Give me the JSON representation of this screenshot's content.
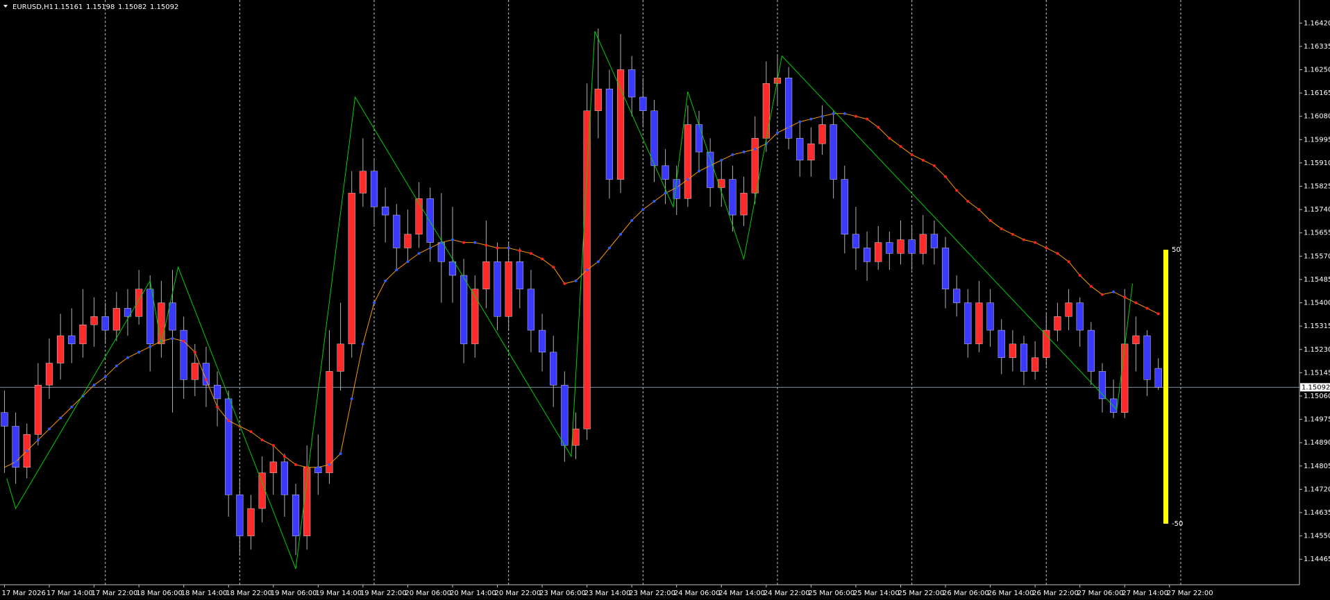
{
  "chart_data": {
    "type": "candlestick",
    "symbol": "EURUSD,H1",
    "quote": [
      1.15161,
      1.15198,
      1.15082,
      1.15092
    ],
    "last_price": 1.15092,
    "up_color": "#ff2a2a",
    "down_color": "#3a3aff",
    "wick_color": "#b0b0b0",
    "ma_color": "#ff9900",
    "ma_up_color": "#2a5cff",
    "ma_down_color": "#ff2020",
    "zigzag_color": "#00d000",
    "grid": true,
    "ylim": [
      1.14372,
      1.16494
    ],
    "xlim": [
      -0.4,
      115.6
    ],
    "yticks": [
      {
        "value": 1.1642,
        "label": "1.16420"
      },
      1.16335,
      {
        "value": 1.1625,
        "label": "1.16250"
      },
      1.16165,
      {
        "value": 1.1608,
        "label": "1.16080"
      },
      1.15995,
      {
        "value": 1.1591,
        "label": "1.15910"
      },
      1.15825,
      {
        "value": 1.1574,
        "label": "1.15740"
      },
      1.15655,
      {
        "value": 1.1557,
        "label": "1.15570"
      },
      1.15485,
      {
        "value": 1.154,
        "label": "1.15400"
      },
      1.15315,
      {
        "value": 1.1523,
        "label": "1.15230"
      },
      1.15145,
      {
        "value": 1.1506,
        "label": "1.15060"
      },
      1.14975,
      {
        "value": 1.1489,
        "label": "1.14890"
      },
      1.14805,
      {
        "value": 1.1472,
        "label": "1.14720"
      },
      1.14635,
      {
        "value": 1.1455,
        "label": "1.14550"
      },
      1.14465
    ],
    "xticks": [
      {
        "value": 0,
        "label": "17 Mar 2026"
      },
      {
        "value": 4,
        "label": "17 Mar 14:00"
      },
      {
        "value": 8,
        "label": "17 Mar 22:00"
      },
      {
        "value": 12,
        "label": "18 Mar 06:00"
      },
      {
        "value": 16,
        "label": "18 Mar 14:00"
      },
      {
        "value": 20,
        "label": "18 Mar 22:00"
      },
      {
        "value": 24,
        "label": "19 Mar 06:00"
      },
      {
        "value": 28,
        "label": "19 Mar 14:00"
      },
      {
        "value": 32,
        "label": "19 Mar 22:00"
      },
      {
        "value": 36,
        "label": "20 Mar 06:00"
      },
      {
        "value": 40,
        "label": "20 Mar 14:00"
      },
      {
        "value": 44,
        "label": "20 Mar 22:00"
      },
      {
        "value": 48,
        "label": "23 Mar 06:00"
      },
      {
        "value": 52,
        "label": "23 Mar 14:00"
      },
      {
        "value": 56,
        "label": "23 Mar 22:00"
      },
      {
        "value": 60,
        "label": "24 Mar 06:00"
      },
      {
        "value": 64,
        "label": "24 Mar 14:00"
      },
      {
        "value": 68,
        "label": "24 Mar 22:00"
      },
      {
        "value": 72,
        "label": "25 Mar 06:00"
      },
      {
        "value": 76,
        "label": "25 Mar 14:00"
      },
      {
        "value": 80,
        "label": "25 Mar 22:00"
      },
      {
        "value": 84,
        "label": "26 Mar 06:00"
      },
      {
        "value": 88,
        "label": "26 Mar 14:00"
      },
      {
        "value": 92,
        "label": "26 Mar 22:00"
      },
      {
        "value": 96,
        "label": "27 Mar 06:00"
      },
      {
        "value": 100,
        "label": "27 Mar 14:00"
      },
      {
        "value": 104,
        "label": "27 Mar 22:00"
      }
    ],
    "ohlc": [
      [
        1.15,
        1.1508,
        1.1478,
        1.1495
      ],
      [
        1.1495,
        1.15,
        1.1474,
        1.148
      ],
      [
        1.148,
        1.1496,
        1.1476,
        1.1492
      ],
      [
        1.1492,
        1.1518,
        1.1488,
        1.151
      ],
      [
        1.151,
        1.1527,
        1.1505,
        1.1518
      ],
      [
        1.1518,
        1.1536,
        1.1512,
        1.1528
      ],
      [
        1.1528,
        1.1538,
        1.1518,
        1.1525
      ],
      [
        1.1525,
        1.1545,
        1.152,
        1.1532
      ],
      [
        1.1532,
        1.1542,
        1.1524,
        1.1535
      ],
      [
        1.1535,
        1.154,
        1.1525,
        1.153
      ],
      [
        1.153,
        1.1544,
        1.1526,
        1.1538
      ],
      [
        1.1538,
        1.1545,
        1.1528,
        1.1535
      ],
      [
        1.1535,
        1.1552,
        1.1532,
        1.1545
      ],
      [
        1.1545,
        1.155,
        1.1515,
        1.1525
      ],
      [
        1.1525,
        1.1548,
        1.152,
        1.154
      ],
      [
        1.154,
        1.1552,
        1.15,
        1.153
      ],
      [
        1.153,
        1.1535,
        1.1505,
        1.1512
      ],
      [
        1.1512,
        1.1525,
        1.1506,
        1.1518
      ],
      [
        1.1518,
        1.1524,
        1.1502,
        1.151
      ],
      [
        1.151,
        1.1515,
        1.1495,
        1.1505
      ],
      [
        1.1505,
        1.1508,
        1.1462,
        1.147
      ],
      [
        1.147,
        1.1476,
        1.1448,
        1.1455
      ],
      [
        1.1455,
        1.147,
        1.145,
        1.1465
      ],
      [
        1.1465,
        1.1484,
        1.146,
        1.1478
      ],
      [
        1.1478,
        1.1488,
        1.147,
        1.1482
      ],
      [
        1.1482,
        1.1485,
        1.1462,
        1.147
      ],
      [
        1.147,
        1.1474,
        1.1448,
        1.1455
      ],
      [
        1.1455,
        1.1488,
        1.145,
        1.148
      ],
      [
        1.148,
        1.1492,
        1.147,
        1.1478
      ],
      [
        1.1478,
        1.153,
        1.1474,
        1.1515
      ],
      [
        1.1515,
        1.154,
        1.1508,
        1.1525
      ],
      [
        1.1525,
        1.1588,
        1.152,
        1.158
      ],
      [
        1.158,
        1.16,
        1.1575,
        1.1588
      ],
      [
        1.1588,
        1.1592,
        1.1568,
        1.1575
      ],
      [
        1.1575,
        1.1582,
        1.1562,
        1.1572
      ],
      [
        1.1572,
        1.1576,
        1.1552,
        1.156
      ],
      [
        1.156,
        1.1574,
        1.1555,
        1.1565
      ],
      [
        1.1565,
        1.1584,
        1.156,
        1.1578
      ],
      [
        1.1578,
        1.1582,
        1.1555,
        1.1562
      ],
      [
        1.1562,
        1.158,
        1.154,
        1.1555
      ],
      [
        1.1555,
        1.1575,
        1.154,
        1.155
      ],
      [
        1.155,
        1.1556,
        1.1518,
        1.1525
      ],
      [
        1.1525,
        1.155,
        1.152,
        1.1545
      ],
      [
        1.1545,
        1.157,
        1.1538,
        1.1555
      ],
      [
        1.1555,
        1.1562,
        1.153,
        1.1535
      ],
      [
        1.1535,
        1.1562,
        1.153,
        1.1555
      ],
      [
        1.1555,
        1.156,
        1.1538,
        1.1545
      ],
      [
        1.1545,
        1.1552,
        1.1522,
        1.153
      ],
      [
        1.153,
        1.1536,
        1.1515,
        1.1522
      ],
      [
        1.1522,
        1.1528,
        1.1502,
        1.151
      ],
      [
        1.151,
        1.1515,
        1.1482,
        1.1488
      ],
      [
        1.1488,
        1.15,
        1.1483,
        1.1494
      ],
      [
        1.1494,
        1.162,
        1.149,
        1.161
      ],
      [
        1.161,
        1.164,
        1.16,
        1.1618
      ],
      [
        1.1618,
        1.1625,
        1.1578,
        1.1585
      ],
      [
        1.1585,
        1.1638,
        1.158,
        1.1625
      ],
      [
        1.1625,
        1.163,
        1.1608,
        1.1615
      ],
      [
        1.1615,
        1.1622,
        1.1604,
        1.161
      ],
      [
        1.161,
        1.1614,
        1.1584,
        1.159
      ],
      [
        1.159,
        1.1596,
        1.1576,
        1.1585
      ],
      [
        1.1585,
        1.159,
        1.1572,
        1.1578
      ],
      [
        1.1578,
        1.1612,
        1.1575,
        1.1605
      ],
      [
        1.1605,
        1.161,
        1.1588,
        1.1595
      ],
      [
        1.1595,
        1.16,
        1.1575,
        1.1582
      ],
      [
        1.1582,
        1.1592,
        1.1575,
        1.1585
      ],
      [
        1.1585,
        1.159,
        1.1566,
        1.1572
      ],
      [
        1.1572,
        1.1586,
        1.1568,
        1.158
      ],
      [
        1.158,
        1.1608,
        1.1576,
        1.16
      ],
      [
        1.16,
        1.1628,
        1.1595,
        1.162
      ],
      [
        1.162,
        1.163,
        1.1612,
        1.1622
      ],
      [
        1.1622,
        1.1626,
        1.1596,
        1.16
      ],
      [
        1.16,
        1.1606,
        1.1586,
        1.1592
      ],
      [
        1.1592,
        1.1604,
        1.1586,
        1.1598
      ],
      [
        1.1598,
        1.1612,
        1.1594,
        1.1605
      ],
      [
        1.1605,
        1.161,
        1.1578,
        1.1585
      ],
      [
        1.1585,
        1.159,
        1.1558,
        1.1565
      ],
      [
        1.1565,
        1.1575,
        1.1552,
        1.156
      ],
      [
        1.156,
        1.1566,
        1.1548,
        1.1555
      ],
      [
        1.1555,
        1.1568,
        1.1552,
        1.1562
      ],
      [
        1.1562,
        1.1566,
        1.1552,
        1.1558
      ],
      [
        1.1558,
        1.157,
        1.1554,
        1.1563
      ],
      [
        1.1563,
        1.1568,
        1.1552,
        1.1558
      ],
      [
        1.1558,
        1.1572,
        1.1554,
        1.1565
      ],
      [
        1.1565,
        1.157,
        1.1554,
        1.156
      ],
      [
        1.156,
        1.1564,
        1.1538,
        1.1545
      ],
      [
        1.1545,
        1.155,
        1.1535,
        1.154
      ],
      [
        1.154,
        1.1545,
        1.152,
        1.1525
      ],
      [
        1.1525,
        1.1548,
        1.1522,
        1.154
      ],
      [
        1.154,
        1.1545,
        1.1524,
        1.153
      ],
      [
        1.153,
        1.1534,
        1.1514,
        1.152
      ],
      [
        1.152,
        1.153,
        1.1515,
        1.1525
      ],
      [
        1.1525,
        1.1528,
        1.151,
        1.1515
      ],
      [
        1.1515,
        1.1526,
        1.1512,
        1.152
      ],
      [
        1.152,
        1.1536,
        1.1517,
        1.153
      ],
      [
        1.153,
        1.154,
        1.1526,
        1.1535
      ],
      [
        1.1535,
        1.1545,
        1.153,
        1.154
      ],
      [
        1.154,
        1.1542,
        1.1524,
        1.153
      ],
      [
        1.153,
        1.1533,
        1.151,
        1.1515
      ],
      [
        1.1515,
        1.1518,
        1.15,
        1.1505
      ],
      [
        1.1505,
        1.1512,
        1.1498,
        1.15
      ],
      [
        1.15,
        1.1545,
        1.1498,
        1.1525
      ],
      [
        1.1525,
        1.1535,
        1.1515,
        1.1528
      ],
      [
        1.1528,
        1.153,
        1.1506,
        1.1512
      ],
      [
        1.15161,
        1.15198,
        1.15082,
        1.15092
      ]
    ],
    "ma": [
      1.148,
      1.1482,
      1.1486,
      1.149,
      1.1494,
      1.1498,
      1.1502,
      1.1506,
      1.151,
      1.1513,
      1.1517,
      1.152,
      1.1522,
      1.1524,
      1.1526,
      1.1527,
      1.1526,
      1.1522,
      1.1512,
      1.1502,
      1.1497,
      1.1495,
      1.1493,
      1.149,
      1.1488,
      1.1484,
      1.1481,
      1.148,
      1.148,
      1.1481,
      1.1485,
      1.1505,
      1.1525,
      1.154,
      1.1548,
      1.1552,
      1.1555,
      1.1558,
      1.156,
      1.1562,
      1.1563,
      1.1562,
      1.1562,
      1.1561,
      1.156,
      1.156,
      1.1559,
      1.1558,
      1.1556,
      1.1553,
      1.1547,
      1.1548,
      1.1552,
      1.1555,
      1.156,
      1.1565,
      1.157,
      1.1574,
      1.1577,
      1.158,
      1.1582,
      1.1585,
      1.1588,
      1.159,
      1.1592,
      1.1594,
      1.1595,
      1.1596,
      1.1598,
      1.1602,
      1.1604,
      1.1606,
      1.1607,
      1.1608,
      1.1609,
      1.1609,
      1.1608,
      1.1607,
      1.1604,
      1.16,
      1.1597,
      1.1594,
      1.1592,
      1.159,
      1.1586,
      1.1581,
      1.1577,
      1.1574,
      1.157,
      1.1567,
      1.1565,
      1.1563,
      1.1562,
      1.156,
      1.1558,
      1.1555,
      1.155,
      1.1546,
      1.1543,
      1.1544,
      1.1542,
      1.154,
      1.1538,
      1.1536
    ],
    "zigzag": {
      "x": [
        0.2,
        1,
        13,
        14,
        15.5,
        26,
        31.3,
        50.6,
        52.7,
        59.7,
        61,
        66,
        69.4,
        99.3,
        100.7
      ],
      "values": [
        1.1476,
        1.1465,
        1.1548,
        1.1525,
        1.1553,
        1.1443,
        1.1615,
        1.1484,
        1.1639,
        1.1575,
        1.1617,
        1.1556,
        1.163,
        1.1501,
        1.1547
      ]
    },
    "gauge": {
      "color": "#ffff00",
      "labels": [
        50,
        -50
      ]
    }
  }
}
